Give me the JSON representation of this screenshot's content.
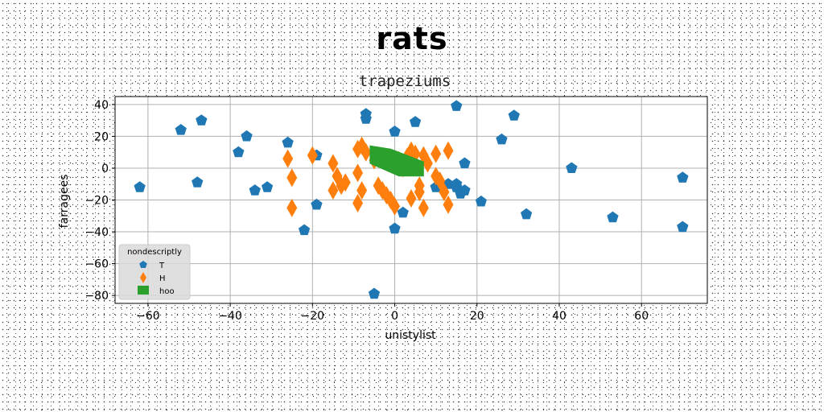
{
  "chart_data": {
    "type": "scatter",
    "suptitle": "rats",
    "title": "trapeziums",
    "xlabel": "unistylist",
    "ylabel": "farragees",
    "xlim": [
      -68,
      76
    ],
    "ylim": [
      -85,
      45
    ],
    "xticks": [
      -60,
      -40,
      -20,
      0,
      20,
      40,
      60
    ],
    "yticks": [
      40,
      20,
      0,
      -20,
      -40,
      -60,
      -80
    ],
    "xtick_labels": [
      "−60",
      "−40",
      "−20",
      "0",
      "20",
      "40",
      "60"
    ],
    "ytick_labels": [
      "40",
      "20",
      "0",
      "−20",
      "−40",
      "−60",
      "−80"
    ],
    "grid": true,
    "legend": {
      "title": "nondescriptly",
      "placement": "lower-left"
    },
    "series": [
      {
        "name": "T",
        "marker": "pentagon",
        "color": "#1f77b4",
        "points": [
          [
            -62,
            -12
          ],
          [
            -52,
            24
          ],
          [
            -47,
            30
          ],
          [
            -48,
            -9
          ],
          [
            -36,
            20
          ],
          [
            -38,
            10
          ],
          [
            -34,
            -14
          ],
          [
            -31,
            -12
          ],
          [
            -26,
            16
          ],
          [
            -22,
            -39
          ],
          [
            -19,
            -23
          ],
          [
            -19,
            8
          ],
          [
            -7,
            34
          ],
          [
            -7,
            31
          ],
          [
            -5,
            -79
          ],
          [
            0,
            23
          ],
          [
            0,
            -38
          ],
          [
            2,
            -28
          ],
          [
            5,
            29
          ],
          [
            10,
            -12
          ],
          [
            13,
            -10
          ],
          [
            15,
            -12
          ],
          [
            15,
            -10
          ],
          [
            15,
            39
          ],
          [
            16,
            -16
          ],
          [
            17,
            -14
          ],
          [
            17,
            3
          ],
          [
            21,
            -21
          ],
          [
            26,
            18
          ],
          [
            29,
            33
          ],
          [
            32,
            -29
          ],
          [
            43,
            0
          ],
          [
            53,
            -31
          ],
          [
            70,
            -6
          ],
          [
            70,
            -37
          ]
        ]
      },
      {
        "name": "H",
        "marker": "thin_diamond",
        "color": "#ff7f0e",
        "points": [
          [
            -26,
            6
          ],
          [
            -25,
            -6
          ],
          [
            -25,
            -25
          ],
          [
            -20,
            8
          ],
          [
            -15,
            3
          ],
          [
            -15,
            -14
          ],
          [
            -14,
            -5
          ],
          [
            -13,
            -11
          ],
          [
            -12,
            -9
          ],
          [
            -9,
            -3
          ],
          [
            -9,
            -22
          ],
          [
            -9,
            12
          ],
          [
            -8,
            14
          ],
          [
            -8,
            -14
          ],
          [
            -7,
            10
          ],
          [
            -5,
            5
          ],
          [
            -4,
            -11
          ],
          [
            -3,
            -14
          ],
          [
            -2,
            -17
          ],
          [
            -1,
            -20
          ],
          [
            0,
            -24
          ],
          [
            1,
            5
          ],
          [
            2,
            0
          ],
          [
            3,
            7
          ],
          [
            4,
            11
          ],
          [
            4,
            -19
          ],
          [
            5,
            9
          ],
          [
            6,
            -11
          ],
          [
            6,
            -15
          ],
          [
            7,
            -25
          ],
          [
            7,
            8
          ],
          [
            8,
            3
          ],
          [
            10,
            9
          ],
          [
            10,
            -5
          ],
          [
            11,
            -8
          ],
          [
            12,
            -15
          ],
          [
            13,
            -23
          ],
          [
            13,
            11
          ]
        ]
      },
      {
        "name": "hoo",
        "marker": "polygon",
        "color": "#2ca02c",
        "vertices": [
          [
            -6,
            14
          ],
          [
            -1,
            12
          ],
          [
            4,
            7
          ],
          [
            7,
            4
          ],
          [
            7,
            -5
          ],
          [
            1,
            -5
          ],
          [
            -6,
            3
          ]
        ]
      }
    ]
  }
}
